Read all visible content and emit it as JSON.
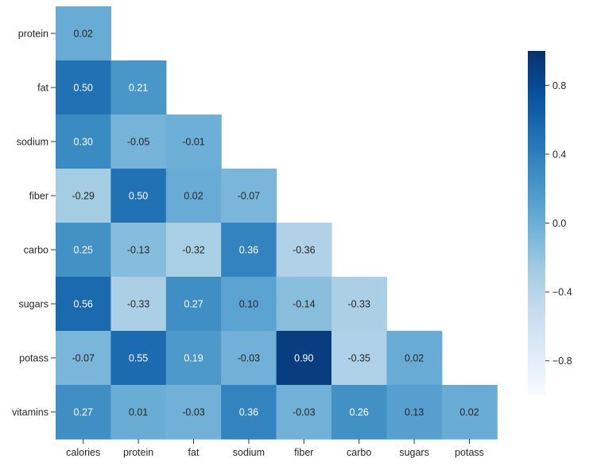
{
  "chart_data": {
    "type": "heatmap",
    "title": "",
    "xlabel": "",
    "ylabel": "",
    "x_labels": [
      "calories",
      "protein",
      "fat",
      "sodium",
      "fiber",
      "carbo",
      "sugars",
      "potass"
    ],
    "y_labels": [
      "protein",
      "fat",
      "sodium",
      "fiber",
      "carbo",
      "sugars",
      "potass",
      "vitamins"
    ],
    "values": [
      [
        0.02,
        null,
        null,
        null,
        null,
        null,
        null,
        null
      ],
      [
        0.5,
        0.21,
        null,
        null,
        null,
        null,
        null,
        null
      ],
      [
        0.3,
        -0.05,
        -0.01,
        null,
        null,
        null,
        null,
        null
      ],
      [
        -0.29,
        0.5,
        0.02,
        -0.07,
        null,
        null,
        null,
        null
      ],
      [
        0.25,
        -0.13,
        -0.32,
        0.36,
        -0.36,
        null,
        null,
        null
      ],
      [
        0.56,
        -0.33,
        0.27,
        0.1,
        -0.14,
        -0.33,
        null,
        null
      ],
      [
        -0.07,
        0.55,
        0.19,
        -0.03,
        0.9,
        -0.35,
        0.02,
        null
      ],
      [
        0.27,
        0.01,
        -0.03,
        0.36,
        -0.03,
        0.26,
        0.13,
        0.02
      ]
    ],
    "annotation_format": "0.00",
    "mask": "upper-triangle",
    "colormap": "Blues",
    "vmin": -1,
    "vmax": 1,
    "colorbar": {
      "ticks": [
        0.8,
        0.4,
        0.0,
        -0.4,
        -0.8
      ],
      "tick_labels": [
        "0.8",
        "0.4",
        "0.0",
        "−0.4",
        "−0.8"
      ],
      "placement": "right"
    },
    "grid": false,
    "legend": "none"
  }
}
